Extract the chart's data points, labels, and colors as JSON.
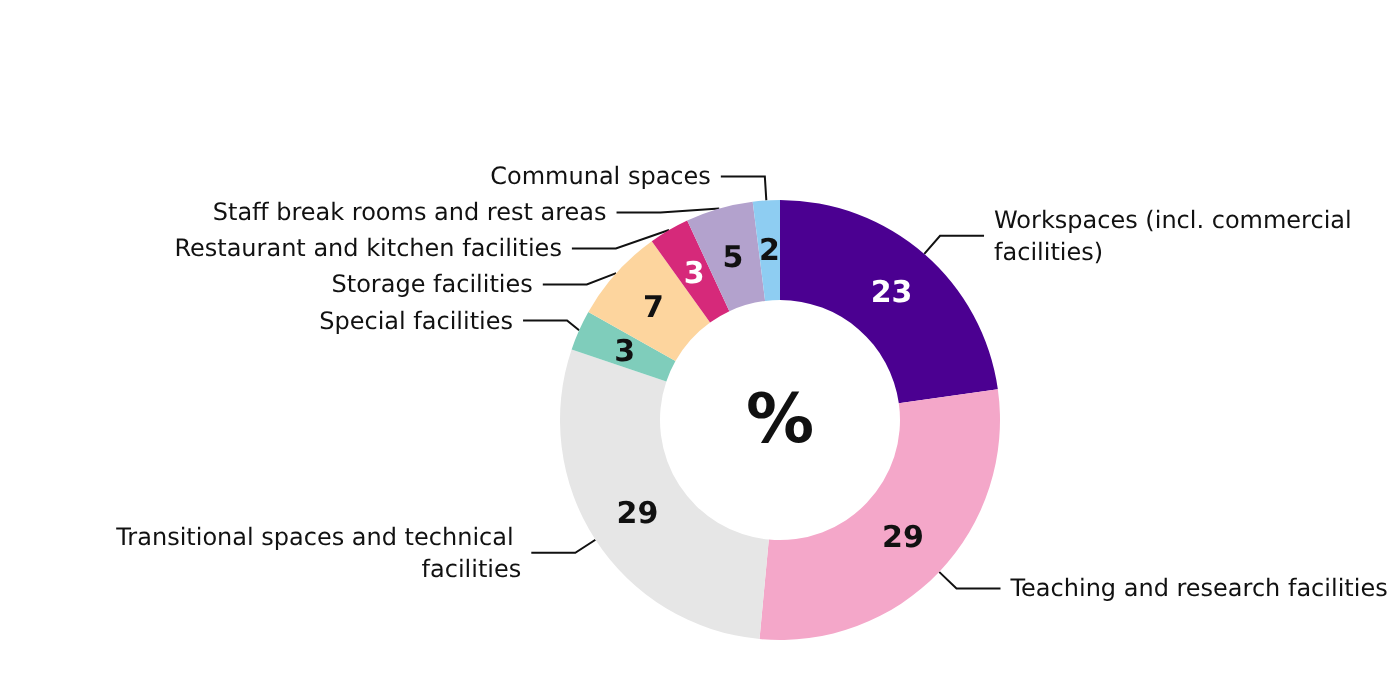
{
  "chart_data": {
    "type": "donut",
    "categories": [
      "Workspaces (incl. commercial facilities)",
      "Teaching and research facilities",
      "Transitional spaces and technical facilities",
      "Special facilities",
      "Storage facilities",
      "Restaurant and kitchen facilities",
      "Staff break rooms and rest areas",
      "Communal spaces"
    ],
    "values": [
      23,
      29,
      29,
      3,
      7,
      3,
      5,
      2
    ],
    "colors": [
      "#4b0091",
      "#f4a7c9",
      "#e6e6e6",
      "#7fcdbb",
      "#fdd59e",
      "#d6297a",
      "#b3a2cd",
      "#8ecdf2"
    ],
    "data_labels": true,
    "legend": false,
    "annotations": [
      "%"
    ]
  }
}
